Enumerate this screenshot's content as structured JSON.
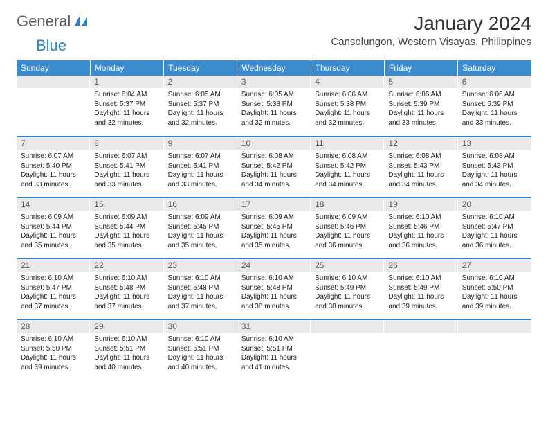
{
  "logo": {
    "part1": "General",
    "part2": "Blue"
  },
  "title": "January 2024",
  "location": "Cansolungon, Western Visayas, Philippines",
  "colors": {
    "header_bg": "#3a8bcf",
    "header_text": "#ffffff",
    "daynum_bg": "#e9e9e9",
    "daynum_text": "#555555",
    "body_text": "#222222",
    "logo_gray": "#5a5a5a",
    "logo_blue": "#2a7fc9",
    "row_border": "#3a8bcf"
  },
  "typography": {
    "title_fontsize": 28,
    "location_fontsize": 15,
    "header_fontsize": 12,
    "daynum_fontsize": 12,
    "body_fontsize": 10
  },
  "weekdays": [
    "Sunday",
    "Monday",
    "Tuesday",
    "Wednesday",
    "Thursday",
    "Friday",
    "Saturday"
  ],
  "weeks": [
    [
      {
        "n": "",
        "sunrise": "",
        "sunset": "",
        "daylight": ""
      },
      {
        "n": "1",
        "sunrise": "Sunrise: 6:04 AM",
        "sunset": "Sunset: 5:37 PM",
        "daylight": "Daylight: 11 hours and 32 minutes."
      },
      {
        "n": "2",
        "sunrise": "Sunrise: 6:05 AM",
        "sunset": "Sunset: 5:37 PM",
        "daylight": "Daylight: 11 hours and 32 minutes."
      },
      {
        "n": "3",
        "sunrise": "Sunrise: 6:05 AM",
        "sunset": "Sunset: 5:38 PM",
        "daylight": "Daylight: 11 hours and 32 minutes."
      },
      {
        "n": "4",
        "sunrise": "Sunrise: 6:06 AM",
        "sunset": "Sunset: 5:38 PM",
        "daylight": "Daylight: 11 hours and 32 minutes."
      },
      {
        "n": "5",
        "sunrise": "Sunrise: 6:06 AM",
        "sunset": "Sunset: 5:39 PM",
        "daylight": "Daylight: 11 hours and 33 minutes."
      },
      {
        "n": "6",
        "sunrise": "Sunrise: 6:06 AM",
        "sunset": "Sunset: 5:39 PM",
        "daylight": "Daylight: 11 hours and 33 minutes."
      }
    ],
    [
      {
        "n": "7",
        "sunrise": "Sunrise: 6:07 AM",
        "sunset": "Sunset: 5:40 PM",
        "daylight": "Daylight: 11 hours and 33 minutes."
      },
      {
        "n": "8",
        "sunrise": "Sunrise: 6:07 AM",
        "sunset": "Sunset: 5:41 PM",
        "daylight": "Daylight: 11 hours and 33 minutes."
      },
      {
        "n": "9",
        "sunrise": "Sunrise: 6:07 AM",
        "sunset": "Sunset: 5:41 PM",
        "daylight": "Daylight: 11 hours and 33 minutes."
      },
      {
        "n": "10",
        "sunrise": "Sunrise: 6:08 AM",
        "sunset": "Sunset: 5:42 PM",
        "daylight": "Daylight: 11 hours and 34 minutes."
      },
      {
        "n": "11",
        "sunrise": "Sunrise: 6:08 AM",
        "sunset": "Sunset: 5:42 PM",
        "daylight": "Daylight: 11 hours and 34 minutes."
      },
      {
        "n": "12",
        "sunrise": "Sunrise: 6:08 AM",
        "sunset": "Sunset: 5:43 PM",
        "daylight": "Daylight: 11 hours and 34 minutes."
      },
      {
        "n": "13",
        "sunrise": "Sunrise: 6:08 AM",
        "sunset": "Sunset: 5:43 PM",
        "daylight": "Daylight: 11 hours and 34 minutes."
      }
    ],
    [
      {
        "n": "14",
        "sunrise": "Sunrise: 6:09 AM",
        "sunset": "Sunset: 5:44 PM",
        "daylight": "Daylight: 11 hours and 35 minutes."
      },
      {
        "n": "15",
        "sunrise": "Sunrise: 6:09 AM",
        "sunset": "Sunset: 5:44 PM",
        "daylight": "Daylight: 11 hours and 35 minutes."
      },
      {
        "n": "16",
        "sunrise": "Sunrise: 6:09 AM",
        "sunset": "Sunset: 5:45 PM",
        "daylight": "Daylight: 11 hours and 35 minutes."
      },
      {
        "n": "17",
        "sunrise": "Sunrise: 6:09 AM",
        "sunset": "Sunset: 5:45 PM",
        "daylight": "Daylight: 11 hours and 35 minutes."
      },
      {
        "n": "18",
        "sunrise": "Sunrise: 6:09 AM",
        "sunset": "Sunset: 5:46 PM",
        "daylight": "Daylight: 11 hours and 36 minutes."
      },
      {
        "n": "19",
        "sunrise": "Sunrise: 6:10 AM",
        "sunset": "Sunset: 5:46 PM",
        "daylight": "Daylight: 11 hours and 36 minutes."
      },
      {
        "n": "20",
        "sunrise": "Sunrise: 6:10 AM",
        "sunset": "Sunset: 5:47 PM",
        "daylight": "Daylight: 11 hours and 36 minutes."
      }
    ],
    [
      {
        "n": "21",
        "sunrise": "Sunrise: 6:10 AM",
        "sunset": "Sunset: 5:47 PM",
        "daylight": "Daylight: 11 hours and 37 minutes."
      },
      {
        "n": "22",
        "sunrise": "Sunrise: 6:10 AM",
        "sunset": "Sunset: 5:48 PM",
        "daylight": "Daylight: 11 hours and 37 minutes."
      },
      {
        "n": "23",
        "sunrise": "Sunrise: 6:10 AM",
        "sunset": "Sunset: 5:48 PM",
        "daylight": "Daylight: 11 hours and 37 minutes."
      },
      {
        "n": "24",
        "sunrise": "Sunrise: 6:10 AM",
        "sunset": "Sunset: 5:48 PM",
        "daylight": "Daylight: 11 hours and 38 minutes."
      },
      {
        "n": "25",
        "sunrise": "Sunrise: 6:10 AM",
        "sunset": "Sunset: 5:49 PM",
        "daylight": "Daylight: 11 hours and 38 minutes."
      },
      {
        "n": "26",
        "sunrise": "Sunrise: 6:10 AM",
        "sunset": "Sunset: 5:49 PM",
        "daylight": "Daylight: 11 hours and 39 minutes."
      },
      {
        "n": "27",
        "sunrise": "Sunrise: 6:10 AM",
        "sunset": "Sunset: 5:50 PM",
        "daylight": "Daylight: 11 hours and 39 minutes."
      }
    ],
    [
      {
        "n": "28",
        "sunrise": "Sunrise: 6:10 AM",
        "sunset": "Sunset: 5:50 PM",
        "daylight": "Daylight: 11 hours and 39 minutes."
      },
      {
        "n": "29",
        "sunrise": "Sunrise: 6:10 AM",
        "sunset": "Sunset: 5:51 PM",
        "daylight": "Daylight: 11 hours and 40 minutes."
      },
      {
        "n": "30",
        "sunrise": "Sunrise: 6:10 AM",
        "sunset": "Sunset: 5:51 PM",
        "daylight": "Daylight: 11 hours and 40 minutes."
      },
      {
        "n": "31",
        "sunrise": "Sunrise: 6:10 AM",
        "sunset": "Sunset: 5:51 PM",
        "daylight": "Daylight: 11 hours and 41 minutes."
      },
      {
        "n": "",
        "sunrise": "",
        "sunset": "",
        "daylight": ""
      },
      {
        "n": "",
        "sunrise": "",
        "sunset": "",
        "daylight": ""
      },
      {
        "n": "",
        "sunrise": "",
        "sunset": "",
        "daylight": ""
      }
    ]
  ]
}
